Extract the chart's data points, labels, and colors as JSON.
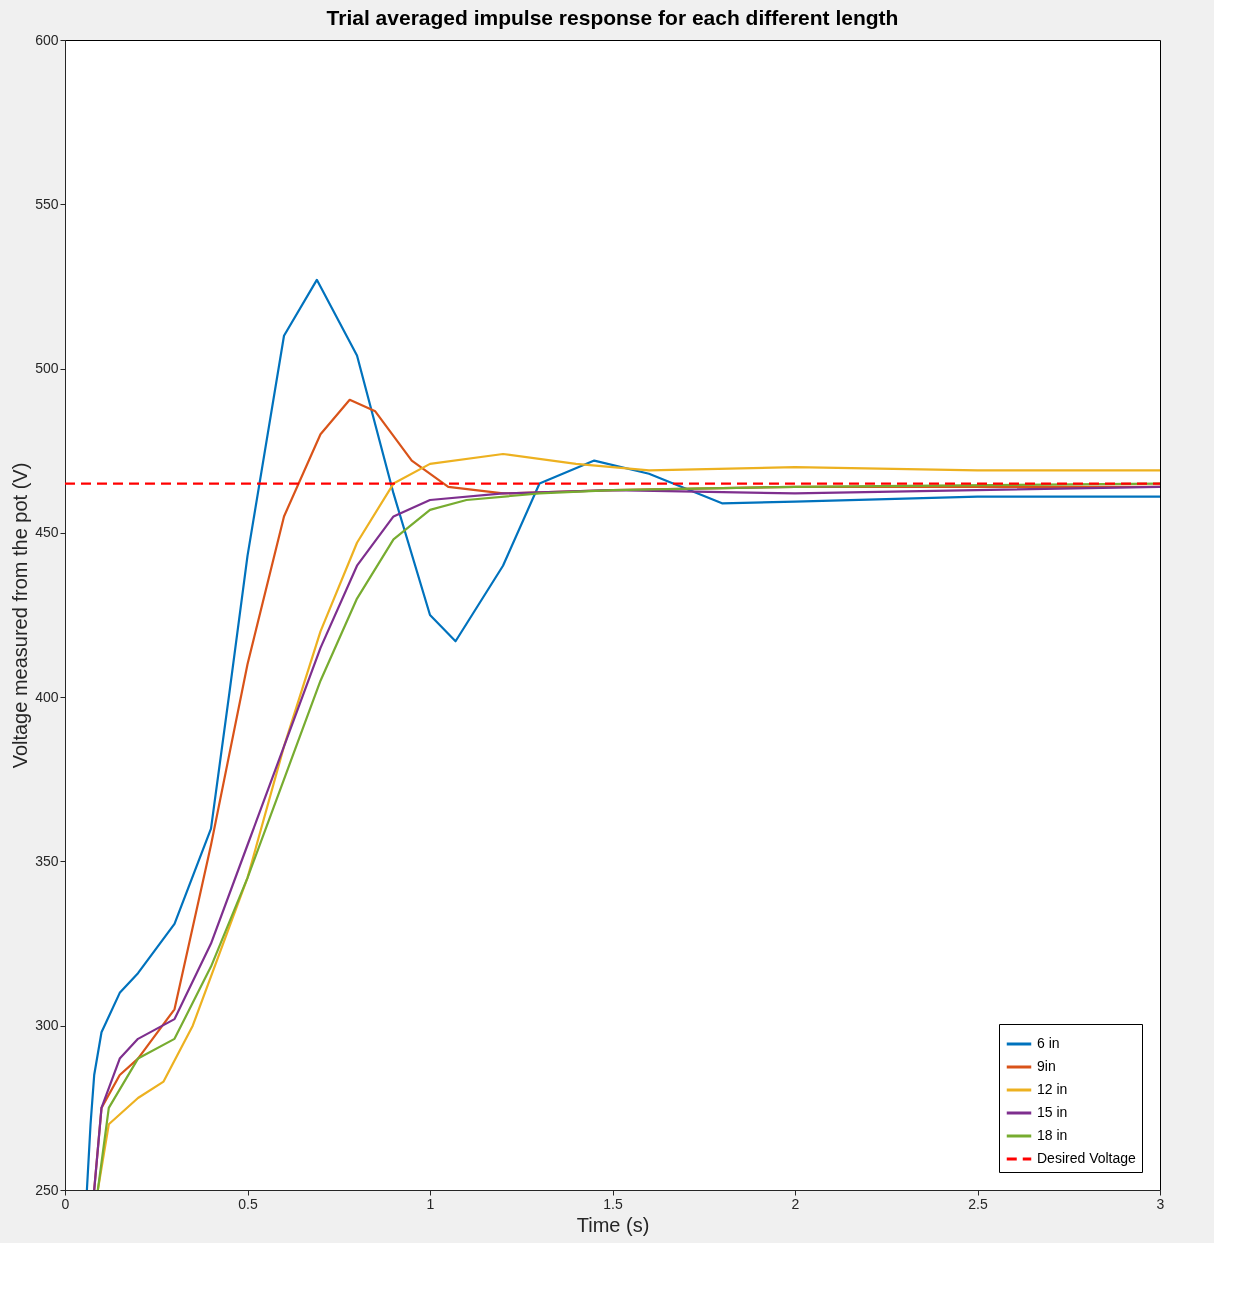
{
  "chart_data": {
    "type": "line",
    "title": "Trial averaged impulse response for each different length",
    "xlabel": "Time (s)",
    "ylabel": "Voltage measured from the pot (V)",
    "xlim": [
      0,
      3
    ],
    "ylim": [
      250,
      600
    ],
    "xticks": [
      0,
      0.5,
      1,
      1.5,
      2,
      2.5,
      3
    ],
    "yticks": [
      250,
      300,
      350,
      400,
      450,
      500,
      550,
      600
    ],
    "grid": false,
    "legend": "bottom right",
    "marker": "none",
    "series": [
      {
        "name": "6 in",
        "color": "#0072bd",
        "line_style": "solid",
        "x": [
          0.06,
          0.07,
          0.08,
          0.1,
          0.15,
          0.2,
          0.3,
          0.4,
          0.45,
          0.5,
          0.6,
          0.69,
          0.8,
          0.9,
          1.0,
          1.07,
          1.2,
          1.3,
          1.45,
          1.6,
          1.8,
          2,
          2.5,
          3
        ],
        "values": [
          250,
          270,
          285,
          298,
          310,
          316,
          331,
          360,
          401,
          443,
          510,
          527,
          504,
          462,
          425,
          417,
          440,
          465,
          472,
          468,
          459,
          459.5,
          461,
          461
        ]
      },
      {
        "name": "9in",
        "color": "#d95319",
        "line_style": "solid",
        "x": [
          0.08,
          0.1,
          0.15,
          0.2,
          0.3,
          0.4,
          0.5,
          0.6,
          0.7,
          0.78,
          0.85,
          0.95,
          1.05,
          1.2,
          1.5,
          2,
          3
        ],
        "values": [
          250,
          275,
          285,
          290,
          305,
          355,
          410,
          455,
          480,
          490.5,
          487,
          472,
          464,
          462,
          463,
          464,
          464
        ]
      },
      {
        "name": "12 in",
        "color": "#edb120",
        "line_style": "solid",
        "x": [
          0.09,
          0.12,
          0.2,
          0.27,
          0.35,
          0.5,
          0.6,
          0.7,
          0.8,
          0.9,
          1.0,
          1.2,
          1.4,
          1.6,
          2,
          2.5,
          3
        ],
        "values": [
          250,
          270,
          278,
          283,
          300,
          345,
          385,
          420,
          447,
          465,
          471,
          474,
          471,
          469,
          470,
          469,
          469
        ]
      },
      {
        "name": "15 in",
        "color": "#7e2f8e",
        "line_style": "solid",
        "x": [
          0.08,
          0.1,
          0.15,
          0.2,
          0.3,
          0.4,
          0.5,
          0.6,
          0.7,
          0.8,
          0.9,
          1.0,
          1.2,
          1.5,
          2,
          3
        ],
        "values": [
          250,
          275,
          290,
          296,
          302,
          325,
          355,
          385,
          415,
          440,
          455,
          460,
          462,
          463,
          462,
          464
        ]
      },
      {
        "name": "18 in",
        "color": "#77ac30",
        "line_style": "solid",
        "x": [
          0.09,
          0.12,
          0.2,
          0.3,
          0.4,
          0.5,
          0.6,
          0.7,
          0.8,
          0.9,
          1.0,
          1.1,
          1.3,
          1.5,
          2,
          3
        ],
        "values": [
          250,
          275,
          290,
          296,
          318,
          345,
          375,
          405,
          430,
          448,
          457,
          460,
          462,
          463,
          464,
          465
        ]
      },
      {
        "name": "Desired Voltage",
        "color": "#ff0000",
        "line_style": "dashed",
        "x": [
          0,
          3
        ],
        "values": [
          465,
          465
        ]
      }
    ]
  }
}
